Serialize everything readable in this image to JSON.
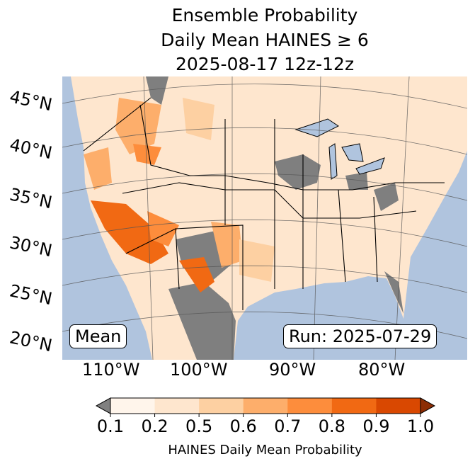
{
  "title": {
    "line1": "Ensemble Probability",
    "line2": "Daily Mean HAINES ≥ 6",
    "line3": "2025-08-17 12z-12z"
  },
  "map": {
    "latitude_labels": [
      "45°N",
      "40°N",
      "35°N",
      "30°N",
      "25°N",
      "20°N"
    ],
    "longitude_labels": [
      "110°W",
      "100°W",
      "90°W",
      "80°W"
    ],
    "colors": {
      "ocean": "#b0c4de",
      "land": "#fee6ce",
      "missing": "#808080"
    }
  },
  "boxes": {
    "left": "Mean",
    "right": "Run: 2025-07-29"
  },
  "colorbar": {
    "ticks": [
      "0.1",
      "0.2",
      "0.5",
      "0.6",
      "0.7",
      "0.8",
      "0.9",
      "1.0"
    ],
    "colors": [
      "#fff5eb",
      "#fee6ce",
      "#fdd0a2",
      "#fdae6b",
      "#fd8d3c",
      "#f16913",
      "#d94801"
    ],
    "under_color": "#808080",
    "over_color": "#8c2d04",
    "label": "HAINES Daily Mean Probability"
  }
}
